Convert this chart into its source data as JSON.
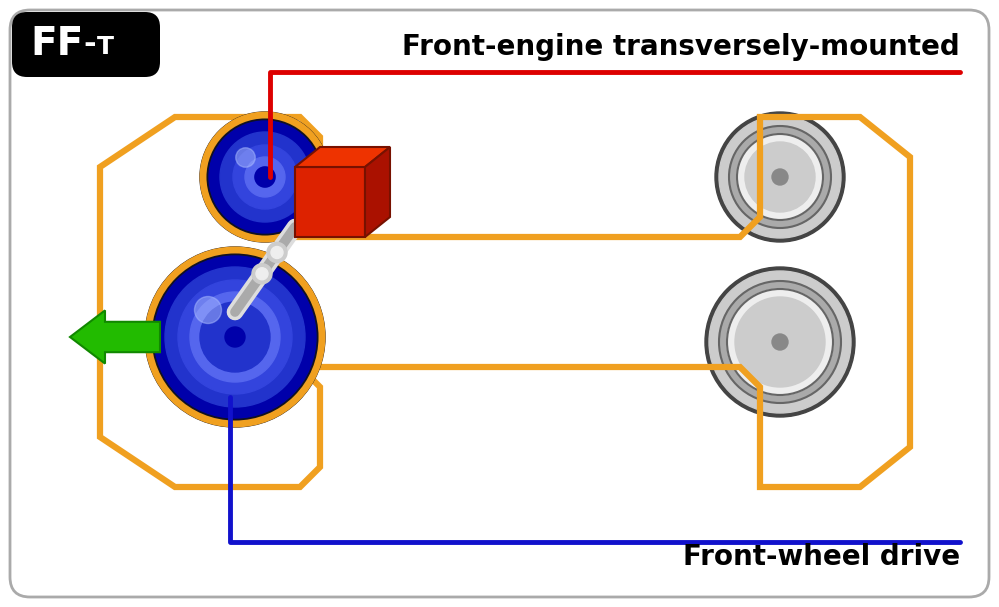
{
  "title": "FF-T",
  "label_engine": "Front-engine transversely-mounted",
  "label_drive": "Front-wheel drive",
  "bg_color": "#ffffff",
  "border_color": "#aaaaaa",
  "red_color": "#dd0000",
  "blue_color": "#1111cc",
  "orange_color": "#f0a020",
  "green_color": "#22bb00",
  "green_dark": "#118800",
  "tire_dark": "#111122",
  "blue1": "#0000aa",
  "blue2": "#2233cc",
  "blue3": "#3344dd",
  "blue4": "#5566ee",
  "blue5": "#7788ff",
  "blue6": "#9999cc",
  "engine_front": "#dd2200",
  "engine_top": "#ee3300",
  "engine_side": "#aa1100",
  "engine_edge": "#771100",
  "shaft_light": "#dddddd",
  "shaft_dark": "#aaaaaa",
  "gray1": "#cccccc",
  "gray2": "#aaaaaa",
  "gray3": "#888888",
  "gray4": "#666666",
  "gray5": "#444444"
}
